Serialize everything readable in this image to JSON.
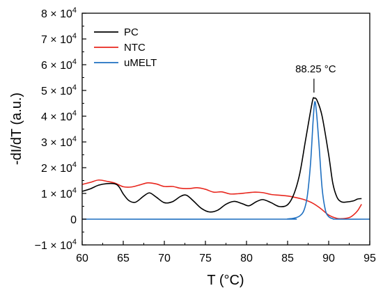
{
  "chart_data": {
    "type": "line",
    "xlabel": "T (°C)",
    "ylabel": "-dI/dT (a.u.)",
    "xlim": [
      60,
      95
    ],
    "ylim": [
      -10000,
      80000
    ],
    "x_ticks": [
      60,
      65,
      70,
      75,
      80,
      85,
      90,
      95
    ],
    "x_tick_labels": [
      "60",
      "65",
      "70",
      "75",
      "80",
      "85",
      "90",
      "95"
    ],
    "y_ticks": [
      -10000,
      0,
      10000,
      20000,
      30000,
      40000,
      50000,
      60000,
      70000,
      80000
    ],
    "y_tick_labels": [
      {
        "mantissa": "−1 × 10",
        "exp": "4"
      },
      {
        "mantissa": "0",
        "exp": ""
      },
      {
        "mantissa": "1 × 10",
        "exp": "4"
      },
      {
        "mantissa": "2 × 10",
        "exp": "4"
      },
      {
        "mantissa": "3 × 10",
        "exp": "4"
      },
      {
        "mantissa": "4 × 10",
        "exp": "4"
      },
      {
        "mantissa": "5 × 10",
        "exp": "4"
      },
      {
        "mantissa": "6 × 10",
        "exp": "4"
      },
      {
        "mantissa": "7 × 10",
        "exp": "4"
      },
      {
        "mantissa": "8 × 10",
        "exp": "4"
      }
    ],
    "legend_position": "top-left",
    "grid": false,
    "annotations": [
      {
        "text": "88.25 °C",
        "x": 88.25,
        "y": 47000
      }
    ],
    "series": [
      {
        "name": "PC",
        "color": "#000000",
        "points": [
          [
            60,
            10800
          ],
          [
            61,
            11800
          ],
          [
            62,
            13200
          ],
          [
            63,
            13800
          ],
          [
            64,
            13700
          ],
          [
            64.5,
            12500
          ],
          [
            65,
            9800
          ],
          [
            65.7,
            7200
          ],
          [
            66.5,
            6600
          ],
          [
            67.5,
            9000
          ],
          [
            68.2,
            10200
          ],
          [
            69,
            8600
          ],
          [
            70,
            6400
          ],
          [
            71,
            6800
          ],
          [
            72,
            8900
          ],
          [
            72.7,
            9300
          ],
          [
            73.5,
            7200
          ],
          [
            74.5,
            4200
          ],
          [
            75.5,
            2800
          ],
          [
            76.5,
            3500
          ],
          [
            77.5,
            5800
          ],
          [
            78.5,
            6900
          ],
          [
            79.5,
            6000
          ],
          [
            80.3,
            5200
          ],
          [
            81.2,
            6800
          ],
          [
            82,
            7600
          ],
          [
            83,
            6400
          ],
          [
            84,
            4900
          ],
          [
            85,
            5600
          ],
          [
            85.8,
            10000
          ],
          [
            86.5,
            18000
          ],
          [
            87.2,
            31000
          ],
          [
            88,
            45500
          ],
          [
            88.25,
            47000
          ],
          [
            88.6,
            46000
          ],
          [
            89.2,
            40000
          ],
          [
            90,
            25000
          ],
          [
            90.5,
            14000
          ],
          [
            91,
            8600
          ],
          [
            91.5,
            6800
          ],
          [
            92,
            6600
          ],
          [
            93,
            7100
          ],
          [
            93.5,
            7800
          ],
          [
            94,
            8000
          ]
        ]
      },
      {
        "name": "NTC",
        "color": "#e8261d",
        "points": [
          [
            60,
            13500
          ],
          [
            61,
            14300
          ],
          [
            62,
            15200
          ],
          [
            63,
            14700
          ],
          [
            64,
            14000
          ],
          [
            65,
            12600
          ],
          [
            66,
            12500
          ],
          [
            67,
            13300
          ],
          [
            68,
            14100
          ],
          [
            69,
            13700
          ],
          [
            70,
            12700
          ],
          [
            71,
            12700
          ],
          [
            72,
            12000
          ],
          [
            73,
            11900
          ],
          [
            74,
            12200
          ],
          [
            75,
            11600
          ],
          [
            76,
            10500
          ],
          [
            77,
            10600
          ],
          [
            78,
            9800
          ],
          [
            79,
            9900
          ],
          [
            80,
            10200
          ],
          [
            81,
            10500
          ],
          [
            82,
            10300
          ],
          [
            83,
            9600
          ],
          [
            84,
            9300
          ],
          [
            85,
            9000
          ],
          [
            86,
            8400
          ],
          [
            87,
            7600
          ],
          [
            88,
            6300
          ],
          [
            89,
            4200
          ],
          [
            90,
            1600
          ],
          [
            91,
            300
          ],
          [
            91.7,
            200
          ],
          [
            92.5,
            600
          ],
          [
            93,
            1600
          ],
          [
            93.5,
            3200
          ],
          [
            94,
            5800
          ]
        ]
      },
      {
        "name": "uMELT",
        "color": "#1e6fc0",
        "points": [
          [
            60,
            0
          ],
          [
            84,
            0
          ],
          [
            85,
            100
          ],
          [
            85.8,
            400
          ],
          [
            86.5,
            1300
          ],
          [
            87,
            3500
          ],
          [
            87.4,
            9000
          ],
          [
            87.8,
            22000
          ],
          [
            88.1,
            38000
          ],
          [
            88.3,
            45500
          ],
          [
            88.5,
            42000
          ],
          [
            88.8,
            30000
          ],
          [
            89.2,
            12000
          ],
          [
            89.6,
            3500
          ],
          [
            90,
            1000
          ],
          [
            90.5,
            200
          ],
          [
            91,
            0
          ],
          [
            95,
            0
          ]
        ]
      }
    ]
  }
}
